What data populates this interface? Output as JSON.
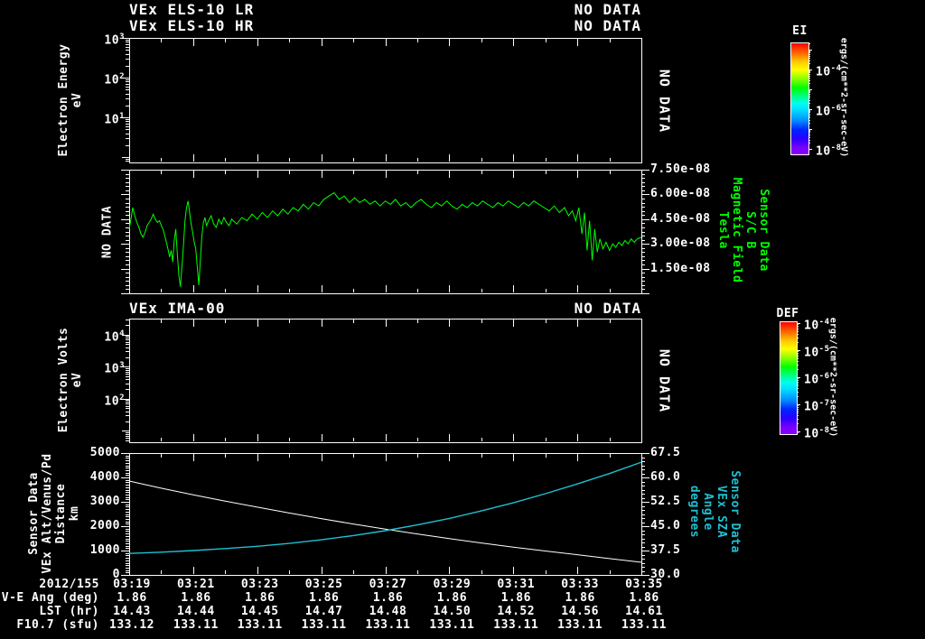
{
  "colors": {
    "background": "#000000",
    "foreground": "#ffffff",
    "mag_line": "#00ff00",
    "mag_label_text": "#00ff00",
    "sza_line": "#1fc0d2",
    "sza_label_text": "#1fc0d2"
  },
  "titles": {
    "els_lr": "VEx ELS-10 LR",
    "els_lr_status": "NO DATA",
    "els_hr": "VEx ELS-10 HR",
    "els_hr_status": "NO DATA",
    "ima": "VEx IMA-00",
    "ima_status": "NO DATA"
  },
  "panel_els": {
    "ylabel_block": "Electron Energy\neV",
    "overlay": "NO DATA",
    "colorbar_label": "EI",
    "colorbar_units": "ergs/(cm**2-sr-sec-eV)"
  },
  "panel_mag": {
    "overlay_left": "NO DATA",
    "right_label_block": "Sensor Data\nS/C B\nMagnetic Field\nTesla"
  },
  "panel_ima": {
    "ylabel_block": "Electron Volts\neV",
    "overlay": "NO DATA",
    "colorbar_label": "DEF",
    "colorbar_units": "ergs/(cm**2-sr-sec-eV)"
  },
  "panel_traj": {
    "left_label_block": "Sensor Data\nVEx Alt/Venus/Pd\nDistance\nkm",
    "right_label_block": "Sensor Data\nVEx SZA\nAngle\ndegrees"
  },
  "xaxis": {
    "date": "2012/155",
    "times": [
      "03:19",
      "03:21",
      "03:23",
      "03:25",
      "03:27",
      "03:29",
      "03:31",
      "03:33",
      "03:35"
    ]
  },
  "table": {
    "rows": [
      {
        "label": "V-E Ang (deg)",
        "values": [
          "1.86",
          "1.86",
          "1.86",
          "1.86",
          "1.86",
          "1.86",
          "1.86",
          "1.86",
          "1.86"
        ]
      },
      {
        "label": "LST (hr)",
        "values": [
          "14.43",
          "14.44",
          "14.45",
          "14.47",
          "14.48",
          "14.50",
          "14.52",
          "14.56",
          "14.61"
        ]
      },
      {
        "label": "F10.7 (sfu)",
        "values": [
          "133.12",
          "133.11",
          "133.11",
          "133.11",
          "133.11",
          "133.11",
          "133.11",
          "133.11",
          "133.11"
        ]
      }
    ]
  },
  "chart_data": [
    {
      "type": "heatmap",
      "panel": "ELS electron energy spectrogram",
      "title": "VEx ELS-10 LR / VEx ELS-10 HR",
      "status": "NO DATA",
      "ylabel": "Electron Energy (eV)",
      "yscale": "log",
      "ytick_labels": [
        "10^3",
        "10^2",
        "10^1"
      ],
      "colorbar_label": "EI",
      "colorbar_units": "ergs/(cm**2-sr-sec-eV)",
      "colorbar_ticks": [
        "10^-4",
        "10^-6",
        "10^-8"
      ],
      "x_span": [
        "03:19",
        "03:35"
      ],
      "values": []
    },
    {
      "type": "line",
      "panel": "Spacecraft magnetic field",
      "series_name": "Sensor Data S/C B Magnetic Field",
      "units": "Tesla",
      "color": "#00ff00",
      "ylim": [
        0,
        7.5e-08
      ],
      "ytick_labels": [
        "7.50e-08",
        "6.00e-08",
        "4.50e-08",
        "3.00e-08",
        "1.50e-08"
      ],
      "x_span": [
        "03:19",
        "03:35"
      ],
      "value_scale": 1e-08,
      "points_x_fraction_value": [
        [
          0.0,
          3.9
        ],
        [
          0.004,
          4.6
        ],
        [
          0.007,
          5.2
        ],
        [
          0.011,
          4.7
        ],
        [
          0.015,
          4.3
        ],
        [
          0.019,
          4.0
        ],
        [
          0.023,
          3.6
        ],
        [
          0.027,
          3.4
        ],
        [
          0.031,
          3.7
        ],
        [
          0.035,
          4.1
        ],
        [
          0.039,
          4.3
        ],
        [
          0.043,
          4.5
        ],
        [
          0.047,
          4.8
        ],
        [
          0.051,
          4.5
        ],
        [
          0.055,
          4.3
        ],
        [
          0.059,
          4.4
        ],
        [
          0.063,
          4.1
        ],
        [
          0.067,
          3.8
        ],
        [
          0.071,
          3.3
        ],
        [
          0.075,
          2.8
        ],
        [
          0.079,
          2.2
        ],
        [
          0.082,
          2.6
        ],
        [
          0.085,
          1.9
        ],
        [
          0.088,
          3.2
        ],
        [
          0.091,
          3.9
        ],
        [
          0.094,
          2.4
        ],
        [
          0.097,
          1.1
        ],
        [
          0.1,
          0.4
        ],
        [
          0.103,
          1.6
        ],
        [
          0.106,
          2.9
        ],
        [
          0.109,
          4.4
        ],
        [
          0.112,
          5.2
        ],
        [
          0.115,
          5.6
        ],
        [
          0.118,
          4.9
        ],
        [
          0.121,
          4.2
        ],
        [
          0.124,
          3.7
        ],
        [
          0.127,
          3.1
        ],
        [
          0.13,
          2.7
        ],
        [
          0.133,
          1.6
        ],
        [
          0.136,
          0.5
        ],
        [
          0.139,
          2.0
        ],
        [
          0.142,
          3.5
        ],
        [
          0.145,
          4.3
        ],
        [
          0.148,
          4.6
        ],
        [
          0.151,
          4.1
        ],
        [
          0.155,
          4.4
        ],
        [
          0.16,
          4.7
        ],
        [
          0.165,
          4.2
        ],
        [
          0.17,
          4.0
        ],
        [
          0.175,
          4.5
        ],
        [
          0.18,
          4.2
        ],
        [
          0.185,
          4.6
        ],
        [
          0.19,
          4.3
        ],
        [
          0.195,
          4.1
        ],
        [
          0.2,
          4.5
        ],
        [
          0.21,
          4.2
        ],
        [
          0.22,
          4.6
        ],
        [
          0.23,
          4.4
        ],
        [
          0.24,
          4.8
        ],
        [
          0.25,
          4.5
        ],
        [
          0.26,
          4.9
        ],
        [
          0.27,
          4.6
        ],
        [
          0.28,
          5.0
        ],
        [
          0.29,
          4.7
        ],
        [
          0.3,
          5.1
        ],
        [
          0.31,
          4.8
        ],
        [
          0.32,
          5.2
        ],
        [
          0.33,
          5.0
        ],
        [
          0.34,
          5.4
        ],
        [
          0.35,
          5.1
        ],
        [
          0.36,
          5.5
        ],
        [
          0.37,
          5.3
        ],
        [
          0.38,
          5.7
        ],
        [
          0.39,
          5.9
        ],
        [
          0.4,
          6.1
        ],
        [
          0.41,
          5.7
        ],
        [
          0.42,
          5.9
        ],
        [
          0.43,
          5.5
        ],
        [
          0.44,
          5.8
        ],
        [
          0.45,
          5.5
        ],
        [
          0.46,
          5.7
        ],
        [
          0.47,
          5.4
        ],
        [
          0.48,
          5.6
        ],
        [
          0.49,
          5.3
        ],
        [
          0.5,
          5.6
        ],
        [
          0.51,
          5.4
        ],
        [
          0.52,
          5.7
        ],
        [
          0.53,
          5.3
        ],
        [
          0.54,
          5.5
        ],
        [
          0.55,
          5.2
        ],
        [
          0.56,
          5.5
        ],
        [
          0.57,
          5.7
        ],
        [
          0.58,
          5.4
        ],
        [
          0.59,
          5.2
        ],
        [
          0.6,
          5.5
        ],
        [
          0.61,
          5.3
        ],
        [
          0.62,
          5.6
        ],
        [
          0.63,
          5.3
        ],
        [
          0.64,
          5.1
        ],
        [
          0.65,
          5.4
        ],
        [
          0.66,
          5.2
        ],
        [
          0.67,
          5.5
        ],
        [
          0.68,
          5.3
        ],
        [
          0.69,
          5.6
        ],
        [
          0.7,
          5.4
        ],
        [
          0.71,
          5.2
        ],
        [
          0.72,
          5.5
        ],
        [
          0.73,
          5.3
        ],
        [
          0.74,
          5.6
        ],
        [
          0.75,
          5.4
        ],
        [
          0.76,
          5.2
        ],
        [
          0.77,
          5.5
        ],
        [
          0.78,
          5.3
        ],
        [
          0.79,
          5.6
        ],
        [
          0.8,
          5.4
        ],
        [
          0.81,
          5.2
        ],
        [
          0.82,
          5.0
        ],
        [
          0.83,
          5.3
        ],
        [
          0.84,
          4.9
        ],
        [
          0.85,
          5.2
        ],
        [
          0.858,
          4.7
        ],
        [
          0.865,
          5.0
        ],
        [
          0.872,
          4.4
        ],
        [
          0.878,
          5.2
        ],
        [
          0.884,
          3.6
        ],
        [
          0.889,
          4.9
        ],
        [
          0.894,
          2.6
        ],
        [
          0.899,
          4.4
        ],
        [
          0.904,
          2.0
        ],
        [
          0.909,
          3.9
        ],
        [
          0.914,
          2.5
        ],
        [
          0.919,
          3.3
        ],
        [
          0.925,
          2.7
        ],
        [
          0.931,
          3.1
        ],
        [
          0.938,
          2.6
        ],
        [
          0.944,
          3.0
        ],
        [
          0.95,
          2.8
        ],
        [
          0.956,
          3.1
        ],
        [
          0.962,
          2.9
        ],
        [
          0.968,
          3.2
        ],
        [
          0.974,
          3.0
        ],
        [
          0.98,
          3.3
        ],
        [
          0.986,
          3.1
        ],
        [
          0.992,
          3.3
        ],
        [
          1.0,
          3.4
        ]
      ]
    },
    {
      "type": "heatmap",
      "panel": "IMA ion spectrogram",
      "title": "VEx IMA-00",
      "status": "NO DATA",
      "ylabel": "Electron Volts (eV)",
      "yscale": "log",
      "ytick_labels": [
        "10^4",
        "10^3",
        "10^2"
      ],
      "colorbar_label": "DEF",
      "colorbar_units": "ergs/(cm**2-sr-sec-eV)",
      "colorbar_ticks": [
        "10^-4",
        "10^-5",
        "10^-6",
        "10^-7",
        "10^-8"
      ],
      "x_span": [
        "03:19",
        "03:35"
      ],
      "values": []
    },
    {
      "type": "line",
      "panel": "Trajectory",
      "x_span": [
        "03:19",
        "03:35"
      ],
      "x_minutes_after_start": [
        0,
        1,
        2,
        3,
        4,
        5,
        6,
        7,
        8,
        9,
        10,
        11,
        12,
        13,
        14,
        15,
        16
      ],
      "series": [
        {
          "name": "VEx Alt/Venus/Pd Distance",
          "units": "km",
          "axis": "left",
          "color": "#ffffff",
          "ylim": [
            0,
            5000
          ],
          "ytick_labels": [
            "5000",
            "4000",
            "3000",
            "2000",
            "1000",
            "0"
          ],
          "values": [
            3850,
            3560,
            3290,
            3030,
            2780,
            2540,
            2310,
            2090,
            1880,
            1680,
            1490,
            1310,
            1140,
            980,
            830,
            670,
            520
          ]
        },
        {
          "name": "VEx SZA Angle",
          "units": "degrees",
          "axis": "right",
          "color": "#1fc0d2",
          "ylim": [
            30,
            67.5
          ],
          "ytick_labels": [
            "67.5",
            "60.0",
            "52.5",
            "45.0",
            "37.5",
            "30.0"
          ],
          "values": [
            36.6,
            37.0,
            37.5,
            38.1,
            38.8,
            39.7,
            40.8,
            42.1,
            43.6,
            45.4,
            47.4,
            49.7,
            52.2,
            55.0,
            58.0,
            61.2,
            64.7
          ]
        }
      ]
    }
  ]
}
